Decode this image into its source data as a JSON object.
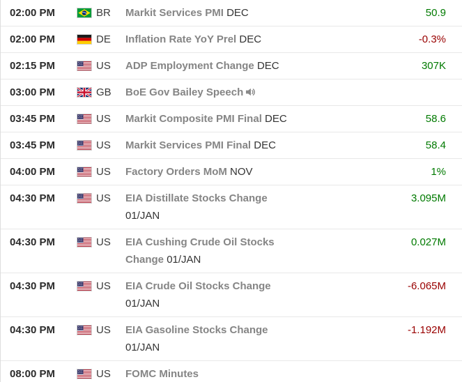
{
  "calendar": {
    "positive_color": "#007a00",
    "negative_color": "#990000",
    "rows": [
      {
        "time": "02:00 PM",
        "country": "BR",
        "flag_icon": "br-flag-icon",
        "event": "Markit Services PMI",
        "date": "DEC",
        "value": "50.9",
        "trend": "positive",
        "has_audio": false
      },
      {
        "time": "02:00 PM",
        "country": "DE",
        "flag_icon": "de-flag-icon",
        "event": "Inflation Rate YoY Prel",
        "date": "DEC",
        "value": "-0.3%",
        "trend": "negative",
        "has_audio": false
      },
      {
        "time": "02:15 PM",
        "country": "US",
        "flag_icon": "us-flag-icon",
        "event": "ADP Employment Change",
        "date": "DEC",
        "value": "307K",
        "trend": "positive",
        "has_audio": false
      },
      {
        "time": "03:00 PM",
        "country": "GB",
        "flag_icon": "gb-flag-icon",
        "event": "BoE Gov Bailey Speech",
        "date": "",
        "value": "",
        "trend": "",
        "has_audio": true
      },
      {
        "time": "03:45 PM",
        "country": "US",
        "flag_icon": "us-flag-icon",
        "event": "Markit Composite PMI Final",
        "date": "DEC",
        "value": "58.6",
        "trend": "positive",
        "has_audio": false
      },
      {
        "time": "03:45 PM",
        "country": "US",
        "flag_icon": "us-flag-icon",
        "event": "Markit Services PMI Final",
        "date": "DEC",
        "value": "58.4",
        "trend": "positive",
        "has_audio": false
      },
      {
        "time": "04:00 PM",
        "country": "US",
        "flag_icon": "us-flag-icon",
        "event": "Factory Orders MoM",
        "date": "NOV",
        "value": "1%",
        "trend": "positive",
        "has_audio": false
      },
      {
        "time": "04:30 PM",
        "country": "US",
        "flag_icon": "us-flag-icon",
        "event": "EIA Distillate Stocks Change",
        "date": "01/JAN",
        "value": "3.095M",
        "trend": "positive",
        "has_audio": false
      },
      {
        "time": "04:30 PM",
        "country": "US",
        "flag_icon": "us-flag-icon",
        "event": "EIA Cushing Crude Oil Stocks Change",
        "date": "01/JAN",
        "value": "0.027M",
        "trend": "positive",
        "has_audio": false
      },
      {
        "time": "04:30 PM",
        "country": "US",
        "flag_icon": "us-flag-icon",
        "event": "EIA Crude Oil Stocks Change",
        "date": "01/JAN",
        "value": "-6.065M",
        "trend": "negative",
        "has_audio": false
      },
      {
        "time": "04:30 PM",
        "country": "US",
        "flag_icon": "us-flag-icon",
        "event": "EIA Gasoline Stocks Change",
        "date": "01/JAN",
        "value": "-1.192M",
        "trend": "negative",
        "has_audio": false
      },
      {
        "time": "08:00 PM",
        "country": "US",
        "flag_icon": "us-flag-icon",
        "event": "FOMC Minutes",
        "date": "",
        "value": "",
        "trend": "",
        "has_audio": false
      }
    ]
  }
}
